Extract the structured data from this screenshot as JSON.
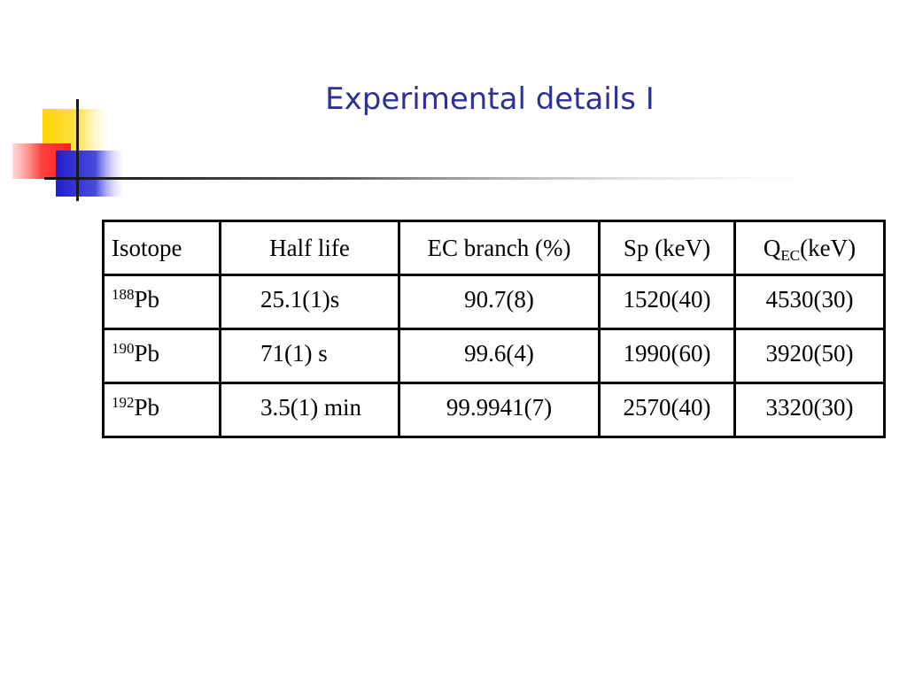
{
  "slide": {
    "title": "Experimental details I",
    "colors": {
      "title": "#2e3192",
      "deco_yellow": "#ffd700",
      "deco_red": "#ff3b3b",
      "deco_blue": "#2b2bd6",
      "rule_dark": "#1a1a1a"
    }
  },
  "table": {
    "headers": {
      "isotope": "Isotope",
      "half_life": "Half life",
      "ec_branch": "EC branch (%)",
      "sp": "Sp (keV)",
      "qec_main": "Q",
      "qec_sub": "EC",
      "qec_unit": "(keV)"
    },
    "rows": [
      {
        "mass": "188",
        "element": "Pb",
        "half_life": "25.1(1)s",
        "ec_branch": "90.7(8)",
        "sp": "1520(40)",
        "qec": "4530(30)"
      },
      {
        "mass": "190",
        "element": "Pb",
        "half_life": "71(1) s",
        "ec_branch": "99.6(4)",
        "sp": "1990(60)",
        "qec": "3920(50)"
      },
      {
        "mass": "192",
        "element": "Pb",
        "half_life": "3.5(1) min",
        "ec_branch": "99.9941(7)",
        "sp": "2570(40)",
        "qec": "3320(30)"
      }
    ]
  }
}
